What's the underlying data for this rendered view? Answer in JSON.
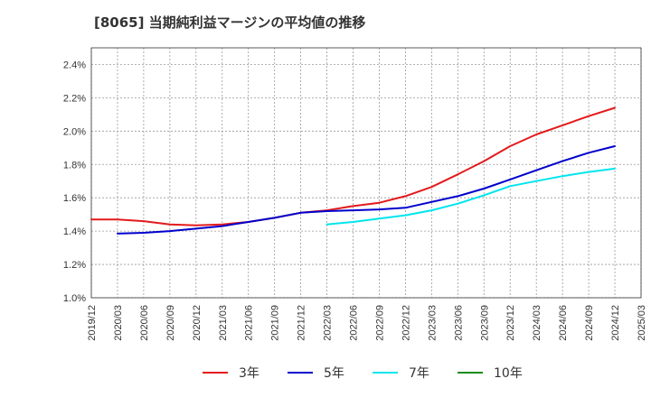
{
  "chart_data": {
    "type": "line",
    "title": "[8065]  当期純利益マージンの平均値の推移",
    "xlabel": "",
    "ylabel": "",
    "x": [
      "2019/12",
      "2020/03",
      "2020/06",
      "2020/09",
      "2020/12",
      "2021/03",
      "2021/06",
      "2021/09",
      "2021/12",
      "2022/03",
      "2022/06",
      "2022/09",
      "2022/12",
      "2023/03",
      "2023/06",
      "2023/09",
      "2023/12",
      "2024/03",
      "2024/06",
      "2024/09",
      "2024/12",
      "2025/03"
    ],
    "ylim": [
      1.0,
      2.5
    ],
    "yticks": [
      1.0,
      1.2,
      1.4,
      1.6,
      1.8,
      2.0,
      2.2,
      2.4
    ],
    "ytick_labels": [
      "1.0%",
      "1.2%",
      "1.4%",
      "1.6%",
      "1.8%",
      "2.0%",
      "2.2%",
      "2.4%"
    ],
    "grid": true,
    "legend_position": "bottom",
    "series": [
      {
        "name": "3年",
        "color": "#e31a1c",
        "values": [
          1.47,
          1.47,
          1.46,
          1.44,
          1.435,
          1.44,
          1.455,
          1.48,
          1.51,
          1.525,
          1.55,
          1.57,
          1.61,
          1.665,
          1.74,
          1.82,
          1.91,
          1.98,
          2.035,
          2.09,
          2.14,
          null
        ]
      },
      {
        "name": "5年",
        "color": "#0000cc",
        "values": [
          null,
          1.385,
          1.39,
          1.4,
          1.415,
          1.43,
          1.455,
          1.48,
          1.51,
          1.52,
          1.525,
          1.53,
          1.54,
          1.575,
          1.61,
          1.655,
          1.71,
          1.765,
          1.82,
          1.87,
          1.91,
          null
        ]
      },
      {
        "name": "7年",
        "color": "#00e5ee",
        "values": [
          null,
          null,
          null,
          null,
          null,
          null,
          null,
          null,
          null,
          1.44,
          1.455,
          1.475,
          1.495,
          1.525,
          1.565,
          1.615,
          1.67,
          1.7,
          1.73,
          1.755,
          1.775,
          null
        ]
      },
      {
        "name": "10年",
        "color": "#1a8c1a",
        "values": [
          null,
          null,
          null,
          null,
          null,
          null,
          null,
          null,
          null,
          null,
          null,
          null,
          null,
          null,
          null,
          null,
          null,
          null,
          null,
          null,
          null,
          null
        ]
      }
    ]
  }
}
